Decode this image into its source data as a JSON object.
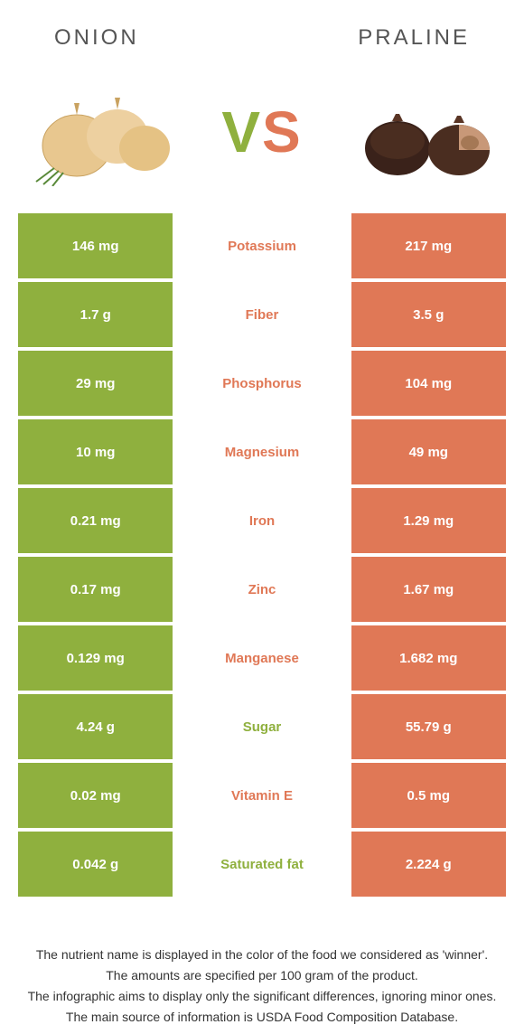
{
  "colors": {
    "left": "#8fb03e",
    "right": "#e07856",
    "bg": "#ffffff",
    "text": "#333333"
  },
  "header": {
    "left_title": "ONION",
    "right_title": "PRALINE"
  },
  "vs": {
    "v": "V",
    "s": "S"
  },
  "rows": [
    {
      "left": "146 mg",
      "label": "Potassium",
      "right": "217 mg",
      "winner": "right"
    },
    {
      "left": "1.7 g",
      "label": "Fiber",
      "right": "3.5 g",
      "winner": "right"
    },
    {
      "left": "29 mg",
      "label": "Phosphorus",
      "right": "104 mg",
      "winner": "right"
    },
    {
      "left": "10 mg",
      "label": "Magnesium",
      "right": "49 mg",
      "winner": "right"
    },
    {
      "left": "0.21 mg",
      "label": "Iron",
      "right": "1.29 mg",
      "winner": "right"
    },
    {
      "left": "0.17 mg",
      "label": "Zinc",
      "right": "1.67 mg",
      "winner": "right"
    },
    {
      "left": "0.129 mg",
      "label": "Manganese",
      "right": "1.682 mg",
      "winner": "right"
    },
    {
      "left": "4.24 g",
      "label": "Sugar",
      "right": "55.79 g",
      "winner": "left"
    },
    {
      "left": "0.02 mg",
      "label": "Vitamin E",
      "right": "0.5 mg",
      "winner": "right"
    },
    {
      "left": "0.042 g",
      "label": "Saturated fat",
      "right": "2.224 g",
      "winner": "left"
    }
  ],
  "footer": {
    "line1": "The nutrient name is displayed in the color of the food we considered as 'winner'.",
    "line2": "The amounts are specified per 100 gram of the product.",
    "line3": "The infographic aims to display only the significant differences, ignoring minor ones.",
    "line4": "The main source of information is USDA Food Composition Database."
  }
}
